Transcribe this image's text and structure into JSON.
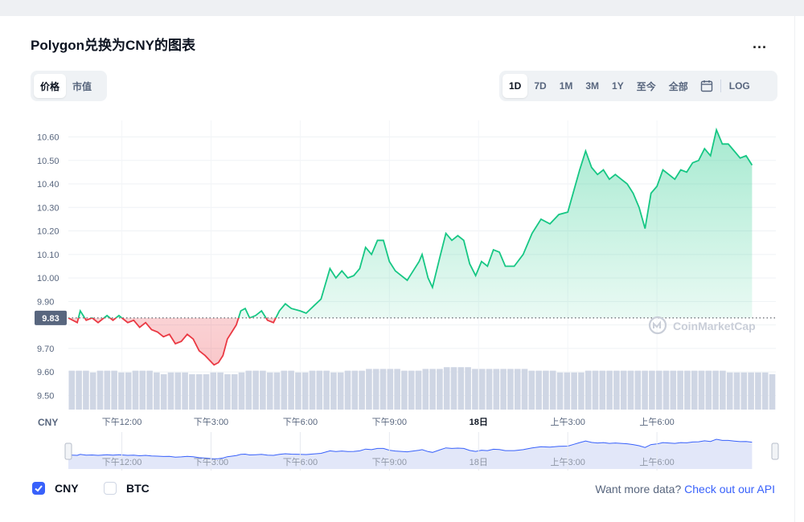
{
  "title": "Polygon兑换为CNY的图表",
  "more_label": "...",
  "metric_tabs": [
    {
      "label": "价格",
      "active": true
    },
    {
      "label": "市值",
      "active": false
    }
  ],
  "range_tabs": [
    {
      "label": "1D",
      "active": true
    },
    {
      "label": "7D",
      "active": false
    },
    {
      "label": "1M",
      "active": false
    },
    {
      "label": "3M",
      "active": false
    },
    {
      "label": "1Y",
      "active": false
    },
    {
      "label": "至今",
      "active": false
    },
    {
      "label": "全部",
      "active": false
    }
  ],
  "log_label": "LOG",
  "icons": {
    "calendar": "calendar-icon",
    "more": "more-horizontal-icon",
    "checkbox": "check-icon",
    "watermark": "coinmarketcap-logo-icon"
  },
  "watermark_text": "CoinMarketCap",
  "legend": [
    {
      "label": "CNY",
      "checked": true
    },
    {
      "label": "BTC",
      "checked": false
    }
  ],
  "more_data": {
    "text": "Want more data?",
    "link": "Check out our API"
  },
  "colors": {
    "up": "#16c784",
    "down": "#ea3943",
    "accent": "#3861fb",
    "volume": "#cfd6e4",
    "navigator": "#e2e7f9"
  },
  "chart_data": {
    "type": "line",
    "currency_label": "CNY",
    "reference_value": 9.83,
    "reference_label": "9.83",
    "ylim": [
      9.44,
      10.67
    ],
    "yticks": [
      9.5,
      9.6,
      9.7,
      9.8,
      9.9,
      10.0,
      10.1,
      10.2,
      10.3,
      10.4,
      10.5,
      10.6
    ],
    "ytick_labels": [
      "9.50",
      "9.60",
      "9.70",
      "",
      "9.90",
      "10.00",
      "10.10",
      "10.20",
      "10.30",
      "10.40",
      "10.50",
      "10.60"
    ],
    "xlim": [
      10.2,
      34.0
    ],
    "xticks": [
      {
        "x": 12,
        "label": "下午12:00"
      },
      {
        "x": 15,
        "label": "下午3:00"
      },
      {
        "x": 18,
        "label": "下午6:00"
      },
      {
        "x": 21,
        "label": "下午9:00"
      },
      {
        "x": 24,
        "label": "18日"
      },
      {
        "x": 27,
        "label": "上午3:00"
      },
      {
        "x": 30,
        "label": "上午6:00"
      }
    ],
    "series": [
      {
        "name": "CNY",
        "points": [
          [
            10.2,
            9.83
          ],
          [
            10.5,
            9.81
          ],
          [
            10.6,
            9.86
          ],
          [
            10.8,
            9.82
          ],
          [
            11.0,
            9.83
          ],
          [
            11.2,
            9.81
          ],
          [
            11.5,
            9.84
          ],
          [
            11.7,
            9.82
          ],
          [
            11.9,
            9.84
          ],
          [
            12.0,
            9.83
          ],
          [
            12.2,
            9.81
          ],
          [
            12.4,
            9.82
          ],
          [
            12.6,
            9.79
          ],
          [
            12.8,
            9.81
          ],
          [
            13.0,
            9.78
          ],
          [
            13.2,
            9.77
          ],
          [
            13.4,
            9.75
          ],
          [
            13.6,
            9.76
          ],
          [
            13.8,
            9.72
          ],
          [
            14.0,
            9.73
          ],
          [
            14.2,
            9.76
          ],
          [
            14.4,
            9.74
          ],
          [
            14.6,
            9.69
          ],
          [
            14.8,
            9.67
          ],
          [
            14.95,
            9.65
          ],
          [
            15.1,
            9.63
          ],
          [
            15.25,
            9.64
          ],
          [
            15.4,
            9.67
          ],
          [
            15.55,
            9.74
          ],
          [
            15.7,
            9.77
          ],
          [
            15.85,
            9.8
          ],
          [
            16.0,
            9.86
          ],
          [
            16.15,
            9.87
          ],
          [
            16.3,
            9.83
          ],
          [
            16.5,
            9.84
          ],
          [
            16.7,
            9.86
          ],
          [
            16.9,
            9.82
          ],
          [
            17.1,
            9.81
          ],
          [
            17.3,
            9.86
          ],
          [
            17.5,
            9.89
          ],
          [
            17.7,
            9.87
          ],
          [
            18.0,
            9.86
          ],
          [
            18.2,
            9.85
          ],
          [
            18.45,
            9.88
          ],
          [
            18.7,
            9.91
          ],
          [
            19.0,
            10.04
          ],
          [
            19.2,
            10.0
          ],
          [
            19.4,
            10.03
          ],
          [
            19.6,
            10.0
          ],
          [
            19.8,
            10.01
          ],
          [
            20.0,
            10.04
          ],
          [
            20.2,
            10.13
          ],
          [
            20.4,
            10.1
          ],
          [
            20.6,
            10.16
          ],
          [
            20.8,
            10.16
          ],
          [
            21.0,
            10.07
          ],
          [
            21.2,
            10.03
          ],
          [
            21.4,
            10.01
          ],
          [
            21.6,
            9.99
          ],
          [
            21.8,
            10.03
          ],
          [
            22.0,
            10.07
          ],
          [
            22.1,
            10.1
          ],
          [
            22.3,
            10.0
          ],
          [
            22.45,
            9.96
          ],
          [
            22.7,
            10.09
          ],
          [
            22.9,
            10.19
          ],
          [
            23.1,
            10.16
          ],
          [
            23.3,
            10.18
          ],
          [
            23.5,
            10.16
          ],
          [
            23.7,
            10.06
          ],
          [
            23.9,
            10.01
          ],
          [
            24.1,
            10.07
          ],
          [
            24.3,
            10.05
          ],
          [
            24.5,
            10.12
          ],
          [
            24.7,
            10.11
          ],
          [
            24.9,
            10.05
          ],
          [
            25.2,
            10.05
          ],
          [
            25.5,
            10.1
          ],
          [
            25.8,
            10.19
          ],
          [
            26.1,
            10.25
          ],
          [
            26.4,
            10.23
          ],
          [
            26.7,
            10.27
          ],
          [
            27.0,
            10.28
          ],
          [
            27.2,
            10.37
          ],
          [
            27.4,
            10.46
          ],
          [
            27.6,
            10.54
          ],
          [
            27.8,
            10.47
          ],
          [
            28.0,
            10.44
          ],
          [
            28.2,
            10.46
          ],
          [
            28.4,
            10.42
          ],
          [
            28.6,
            10.44
          ],
          [
            28.8,
            10.42
          ],
          [
            29.0,
            10.4
          ],
          [
            29.2,
            10.36
          ],
          [
            29.4,
            10.3
          ],
          [
            29.6,
            10.21
          ],
          [
            29.8,
            10.36
          ],
          [
            30.0,
            10.39
          ],
          [
            30.2,
            10.46
          ],
          [
            30.4,
            10.44
          ],
          [
            30.6,
            10.42
          ],
          [
            30.8,
            10.46
          ],
          [
            31.0,
            10.45
          ],
          [
            31.2,
            10.49
          ],
          [
            31.4,
            10.5
          ],
          [
            31.6,
            10.55
          ],
          [
            31.8,
            10.52
          ],
          [
            32.0,
            10.63
          ],
          [
            32.2,
            10.57
          ],
          [
            32.4,
            10.57
          ],
          [
            32.6,
            10.54
          ],
          [
            32.8,
            10.51
          ],
          [
            33.0,
            10.52
          ],
          [
            33.2,
            10.48
          ]
        ]
      }
    ],
    "volume": [
      2.2,
      2.2,
      2.2,
      2.1,
      2.2,
      2.2,
      2.2,
      2.1,
      2.1,
      2.2,
      2.2,
      2.2,
      2.1,
      2.0,
      2.1,
      2.1,
      2.1,
      2.0,
      2.0,
      2.0,
      2.1,
      2.1,
      2.0,
      2.0,
      2.1,
      2.2,
      2.2,
      2.2,
      2.1,
      2.1,
      2.2,
      2.2,
      2.1,
      2.1,
      2.2,
      2.2,
      2.2,
      2.1,
      2.1,
      2.2,
      2.2,
      2.2,
      2.3,
      2.3,
      2.3,
      2.3,
      2.3,
      2.2,
      2.2,
      2.2,
      2.3,
      2.3,
      2.3,
      2.4,
      2.4,
      2.4,
      2.4,
      2.3,
      2.3,
      2.3,
      2.3,
      2.3,
      2.3,
      2.3,
      2.3,
      2.2,
      2.2,
      2.2,
      2.2,
      2.1,
      2.1,
      2.1,
      2.1,
      2.2,
      2.2,
      2.2,
      2.2,
      2.2,
      2.2,
      2.2,
      2.2,
      2.2,
      2.2,
      2.2,
      2.2,
      2.2,
      2.2,
      2.2,
      2.2,
      2.2,
      2.2,
      2.2,
      2.2,
      2.1,
      2.1,
      2.1,
      2.1,
      2.1,
      2.1,
      2.0
    ]
  }
}
